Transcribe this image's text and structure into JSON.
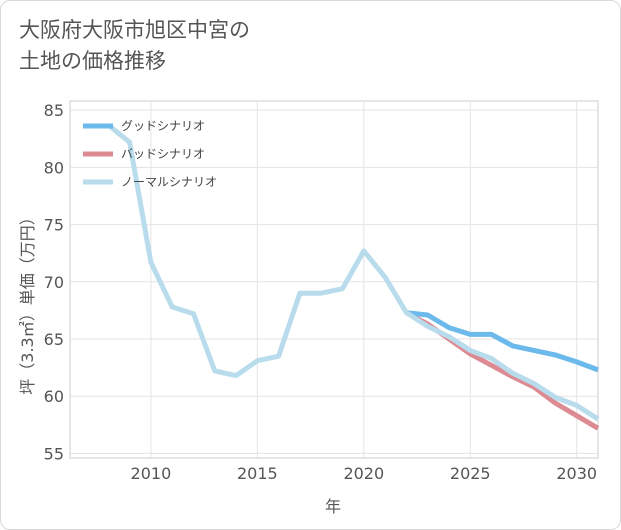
{
  "title": {
    "line1": "大阪府大阪市旭区中宮の",
    "line2": "土地の価格推移"
  },
  "chart_data": {
    "type": "line",
    "xlabel": "年",
    "ylabel": "坪（3.3㎡）単価（万円）",
    "xlim": [
      2006.2,
      2031
    ],
    "ylim": [
      54.6,
      85.8
    ],
    "x_ticks": [
      2010,
      2015,
      2020,
      2025,
      2030
    ],
    "y_ticks": [
      55,
      60,
      65,
      70,
      75,
      80,
      85
    ],
    "grid": true,
    "legend_position": "top-left",
    "series": [
      {
        "name": "グッドシナリオ",
        "color": "#6cb9ec",
        "x": [
          2022,
          2023,
          2024,
          2025,
          2026,
          2027,
          2028,
          2029,
          2030,
          2031
        ],
        "y": [
          67.3,
          67.1,
          66.0,
          65.4,
          65.4,
          64.4,
          64.0,
          63.6,
          63.0,
          62.3
        ]
      },
      {
        "name": "バッドシナリオ",
        "color": "#dc8b92",
        "x": [
          2022,
          2023,
          2024,
          2025,
          2026,
          2027,
          2028,
          2029,
          2030,
          2031
        ],
        "y": [
          67.3,
          66.3,
          65.0,
          63.7,
          62.7,
          61.7,
          60.8,
          59.4,
          58.3,
          57.2
        ]
      },
      {
        "name": "ノーマルシナリオ",
        "color": "#b9dcec",
        "x": [
          2008,
          2009,
          2010,
          2011,
          2012,
          2013,
          2014,
          2015,
          2016,
          2017,
          2018,
          2019,
          2020,
          2021,
          2022,
          2023,
          2024,
          2025,
          2026,
          2027,
          2028,
          2029,
          2030,
          2031
        ],
        "y": [
          83.7,
          82.2,
          71.7,
          67.8,
          67.2,
          62.2,
          61.8,
          63.1,
          63.5,
          69.0,
          69.0,
          69.4,
          72.7,
          70.4,
          67.3,
          66.1,
          65.2,
          64.0,
          63.3,
          62.0,
          61.1,
          59.9,
          59.2,
          58.0
        ]
      }
    ]
  }
}
